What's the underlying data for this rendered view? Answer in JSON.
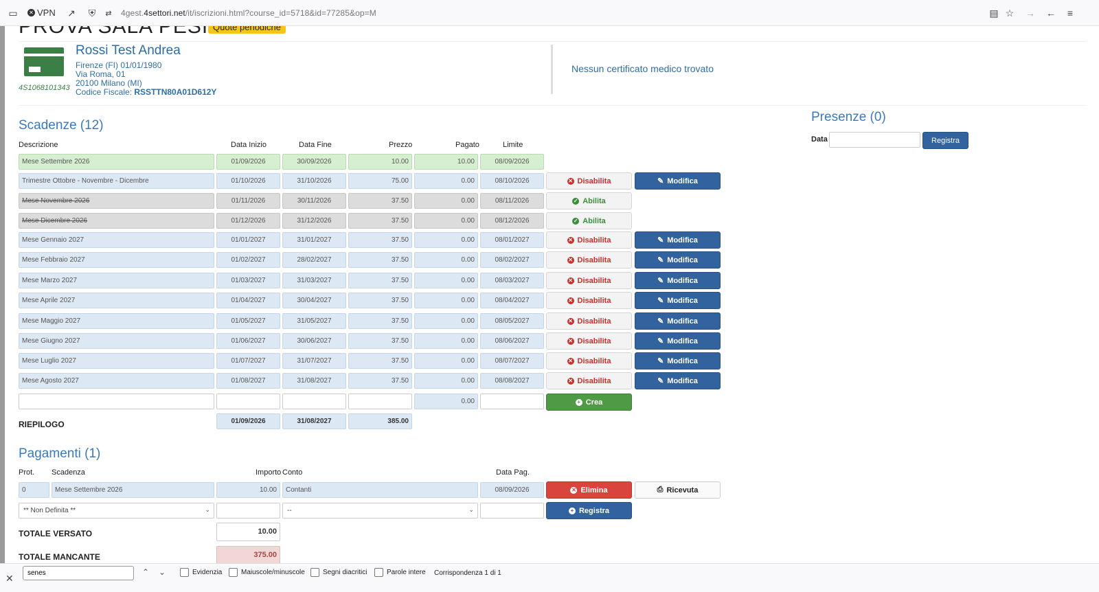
{
  "browser": {
    "vpn_label": "VPN",
    "url_prefix": "4gest.",
    "url_domain": "4settori.net",
    "url_path": "/it/iscrizioni.html?course_id=5718&id=77285&op=M"
  },
  "page": {
    "title": "PROVA SALA PESI",
    "badge": "Quote periodiche"
  },
  "person": {
    "card_code": "4S1068101343",
    "name": "Rossi Test Andrea",
    "birth": "Firenze (FI) 01/01/1980",
    "address": "Via Roma, 01",
    "city": "20100 Milano (MI)",
    "cf_label": "Codice Fiscale:",
    "cf_value": "RSSTTN80A01D612Y",
    "certificate": "Nessun certificato medico trovato"
  },
  "scadenze": {
    "heading": "Scadenze (12)",
    "headers": {
      "descrizione": "Descrizione",
      "inizio": "Data Inizio",
      "fine": "Data Fine",
      "prezzo": "Prezzo",
      "pagato": "Pagato",
      "limite": "Limite"
    },
    "labels": {
      "disabilita": "Disabilita",
      "abilita": "Abilita",
      "modifica": "Modifica",
      "crea": "Crea"
    },
    "rows": [
      {
        "desc": "Mese Settembre 2026",
        "inizio": "01/09/2026",
        "fine": "30/09/2026",
        "prezzo": "10.00",
        "pagato": "10.00",
        "limite": "08/09/2026",
        "state": "paid"
      },
      {
        "desc": "Trimestre Ottobre - Novembre - Dicembre",
        "inizio": "01/10/2026",
        "fine": "31/10/2026",
        "prezzo": "75.00",
        "pagato": "0.00",
        "limite": "08/10/2026",
        "state": "active"
      },
      {
        "desc": "Mese Novembre 2026",
        "inizio": "01/11/2026",
        "fine": "30/11/2026",
        "prezzo": "37.50",
        "pagato": "0.00",
        "limite": "08/11/2026",
        "state": "disabled"
      },
      {
        "desc": "Mese Dicembre 2026",
        "inizio": "01/12/2026",
        "fine": "31/12/2026",
        "prezzo": "37.50",
        "pagato": "0.00",
        "limite": "08/12/2026",
        "state": "disabled"
      },
      {
        "desc": "Mese Gennaio 2027",
        "inizio": "01/01/2027",
        "fine": "31/01/2027",
        "prezzo": "37.50",
        "pagato": "0.00",
        "limite": "08/01/2027",
        "state": "active"
      },
      {
        "desc": "Mese Febbraio 2027",
        "inizio": "01/02/2027",
        "fine": "28/02/2027",
        "prezzo": "37.50",
        "pagato": "0.00",
        "limite": "08/02/2027",
        "state": "active"
      },
      {
        "desc": "Mese Marzo 2027",
        "inizio": "01/03/2027",
        "fine": "31/03/2027",
        "prezzo": "37.50",
        "pagato": "0.00",
        "limite": "08/03/2027",
        "state": "active"
      },
      {
        "desc": "Mese Aprile 2027",
        "inizio": "01/04/2027",
        "fine": "30/04/2027",
        "prezzo": "37.50",
        "pagato": "0.00",
        "limite": "08/04/2027",
        "state": "active"
      },
      {
        "desc": "Mese Maggio 2027",
        "inizio": "01/05/2027",
        "fine": "31/05/2027",
        "prezzo": "37.50",
        "pagato": "0.00",
        "limite": "08/05/2027",
        "state": "active"
      },
      {
        "desc": "Mese Giugno 2027",
        "inizio": "01/06/2027",
        "fine": "30/06/2027",
        "prezzo": "37.50",
        "pagato": "0.00",
        "limite": "08/06/2027",
        "state": "active"
      },
      {
        "desc": "Mese Luglio 2027",
        "inizio": "01/07/2027",
        "fine": "31/07/2027",
        "prezzo": "37.50",
        "pagato": "0.00",
        "limite": "08/07/2027",
        "state": "active"
      },
      {
        "desc": "Mese Agosto 2027",
        "inizio": "01/08/2027",
        "fine": "31/08/2027",
        "prezzo": "37.50",
        "pagato": "0.00",
        "limite": "08/08/2027",
        "state": "active"
      }
    ],
    "new_row_pagato": "0.00",
    "riepilogo_label": "RIEPILOGO",
    "riepilogo": {
      "inizio": "01/09/2026",
      "fine": "31/08/2027",
      "prezzo": "385.00"
    }
  },
  "presenze": {
    "heading": "Presenze (0)",
    "data_label": "Data",
    "button": "Registra"
  },
  "pagamenti": {
    "heading": "Pagamenti (1)",
    "headers": {
      "prot": "Prot.",
      "scadenza": "Scadenza",
      "importo": "Importo",
      "conto": "Conto",
      "data": "Data Pag."
    },
    "row": {
      "prot": "0",
      "scadenza": "Mese Settembre 2026",
      "importo": "10.00",
      "conto": "Contanti",
      "data": "08/09/2026"
    },
    "elimina": "Elimina",
    "ricevuta": "Ricevuta",
    "new_scadenza": "** Non Definita **",
    "new_conto": "--",
    "registra": "Registra",
    "totale_versato_label": "TOTALE VERSATO",
    "totale_versato": "10.00",
    "totale_mancante_label": "TOTALE MANCANTE",
    "totale_mancante": "375.00"
  },
  "findbar": {
    "query": "senes",
    "options": [
      "Evidenzia",
      "Maiuscole/minuscole",
      "Segni diacritici",
      "Parole intere"
    ],
    "status": "Corrispondenza 1 di 1"
  },
  "colors": {
    "accent_blue": "#33639e",
    "heading_blue": "#3a7ab8",
    "danger": "#c9302c",
    "success": "#4e9a45",
    "badge_yellow": "#f5c518"
  }
}
